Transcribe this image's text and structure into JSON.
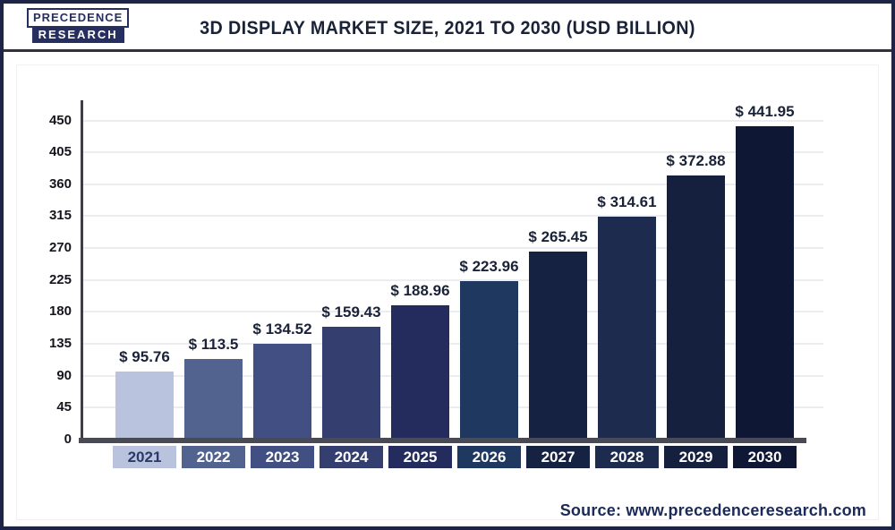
{
  "logo": {
    "line1": "PRECEDENCE",
    "line2": "RESEARCH"
  },
  "header": {
    "title": "3D DISPLAY MARKET SIZE, 2021 TO 2030 (USD BILLION)"
  },
  "footer": {
    "source": "Source: www.precedenceresearch.com"
  },
  "colors": {
    "frame_border": "#1d2445",
    "header_rule": "#32323e",
    "axis": "#3e3e48",
    "x_axis_line": "#4a4a54",
    "gridline": "#ededf1",
    "title_text": "#1a2238",
    "footer_text": "#1c2a57"
  },
  "chart_data": {
    "type": "bar",
    "title": "3D Display Market Size, 2021 to 2030 (USD Billion)",
    "xlabel": "",
    "ylabel": "",
    "categories": [
      "2021",
      "2022",
      "2023",
      "2024",
      "2025",
      "2026",
      "2027",
      "2028",
      "2029",
      "2030"
    ],
    "values": [
      95.76,
      113.5,
      134.52,
      159.43,
      188.96,
      223.96,
      265.45,
      314.61,
      372.88,
      441.95
    ],
    "value_labels": [
      "$ 95.76",
      "$ 113.5",
      "$ 134.52",
      "$ 159.43",
      "$ 188.96",
      "$ 223.96",
      "$ 265.45",
      "$ 314.61",
      "$ 372.88",
      "$ 441.95"
    ],
    "bar_colors": [
      "#b9c3de",
      "#53638f",
      "#424f82",
      "#343f70",
      "#232c5c",
      "#1e3860",
      "#152242",
      "#1d2c4e",
      "#15203e",
      "#0e1733"
    ],
    "category_text_colors": [
      "#2c3968",
      "#ffffff",
      "#ffffff",
      "#ffffff",
      "#ffffff",
      "#ffffff",
      "#ffffff",
      "#ffffff",
      "#ffffff",
      "#ffffff"
    ],
    "yticks": [
      0,
      45,
      90,
      135,
      180,
      225,
      270,
      315,
      360,
      405,
      450
    ],
    "ylim": [
      0,
      450
    ],
    "grid": true,
    "legend": false,
    "unit": "USD Billion"
  }
}
